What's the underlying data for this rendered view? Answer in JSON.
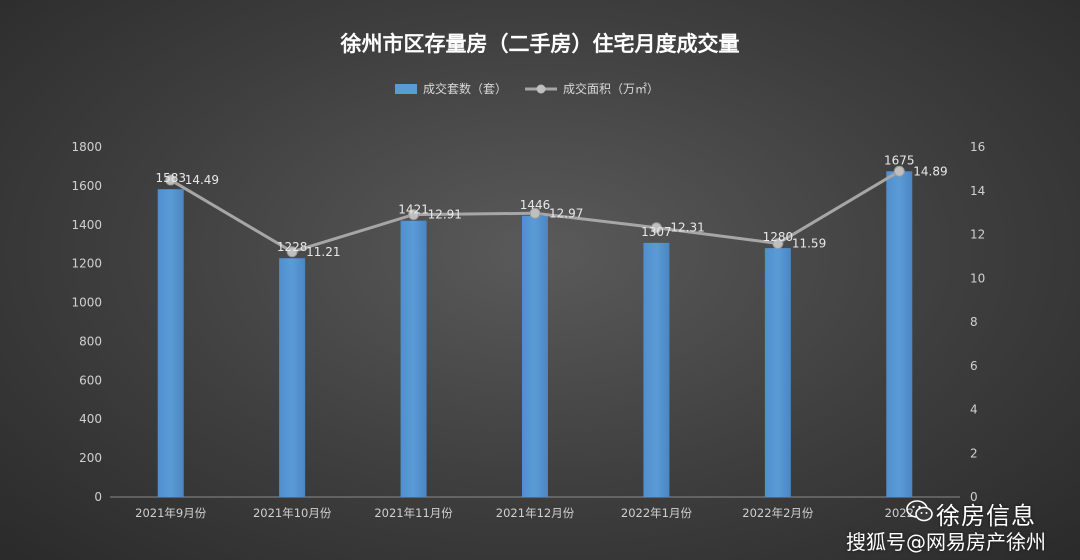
{
  "chart_data": {
    "type": "bar",
    "title": "徐州市区存量房（二手房）住宅月度成交量",
    "categories": [
      "2021年9月份",
      "2021年10月份",
      "2021年11月份",
      "2021年12月份",
      "2022年1月份",
      "2022年2月份",
      "2022年3月份"
    ],
    "category_labels": [
      "2021年9月份",
      "2021年10月份",
      "2021年11月份",
      "2021年12月份",
      "2022年1月份",
      "2022年2月份",
      "2022"
    ],
    "series": [
      {
        "name": "成交套数（套）",
        "type": "bar",
        "axis": "left",
        "color": "#5b9bd5",
        "values": [
          1583,
          1228,
          1421,
          1446,
          1307,
          1280,
          1675
        ]
      },
      {
        "name": "成交面积（万㎡）",
        "type": "line",
        "axis": "right",
        "color": "#a6a6a6",
        "values": [
          14.49,
          11.21,
          12.91,
          12.97,
          12.31,
          11.59,
          14.89
        ]
      }
    ],
    "ylim_left": [
      0,
      1800
    ],
    "yticks_left": [
      0,
      200,
      400,
      600,
      800,
      1000,
      1200,
      1400,
      1600,
      1800
    ],
    "ylim_right": [
      0,
      16
    ],
    "yticks_right": [
      0,
      2,
      4,
      6,
      8,
      10,
      12,
      14,
      16
    ],
    "legend_position": "top-center",
    "grid": false
  },
  "watermark": {
    "brand": "徐房信息",
    "source": "搜狐号@网易房产徐州"
  }
}
